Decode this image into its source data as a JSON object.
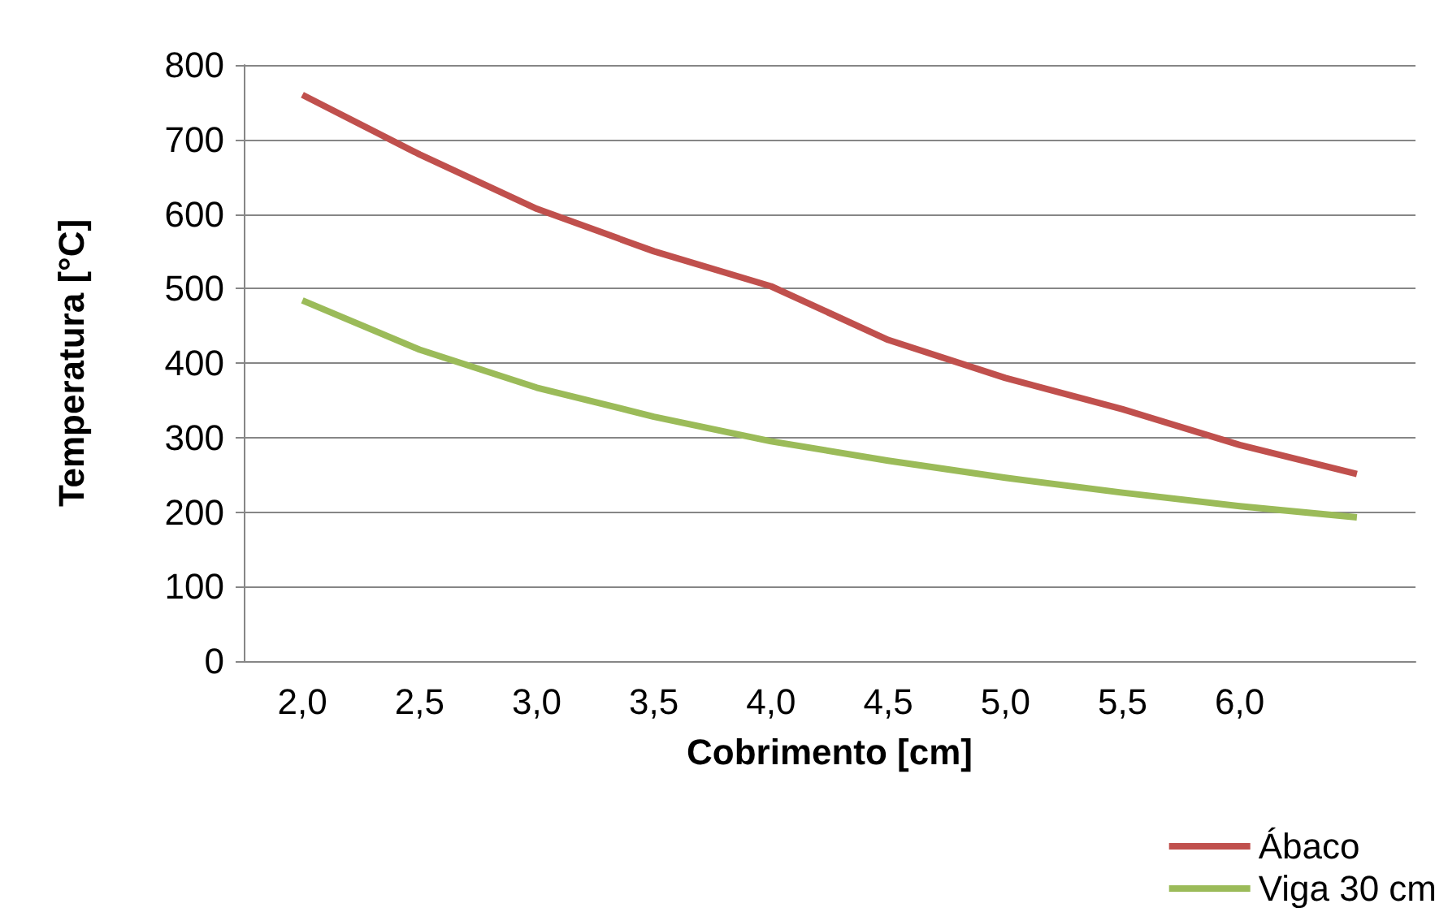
{
  "chart_data": {
    "type": "line",
    "xlabel": "Cobrimento [cm]",
    "ylabel": "Temperatura [°C]",
    "categories": [
      "2,0",
      "2,5",
      "3,0",
      "3,5",
      "4,0",
      "4,5",
      "5,0",
      "5,5",
      "6,0",
      null
    ],
    "series": [
      {
        "name": "Ábaco",
        "color": "#c0504d",
        "values": [
          760,
          680,
          607,
          550,
          503,
          431,
          380,
          338,
          290,
          251
        ]
      },
      {
        "name": "Viga 30 cm",
        "color": "#9bbb59",
        "values": [
          484,
          418,
          367,
          328,
          295,
          269,
          246,
          226,
          208,
          193
        ]
      }
    ],
    "ylim": [
      0,
      800
    ],
    "yticks": [
      0,
      100,
      200,
      300,
      400,
      500,
      600,
      700,
      800
    ],
    "grid": "y",
    "legend": "bottom right",
    "marker": "none",
    "line_style": "solid"
  }
}
